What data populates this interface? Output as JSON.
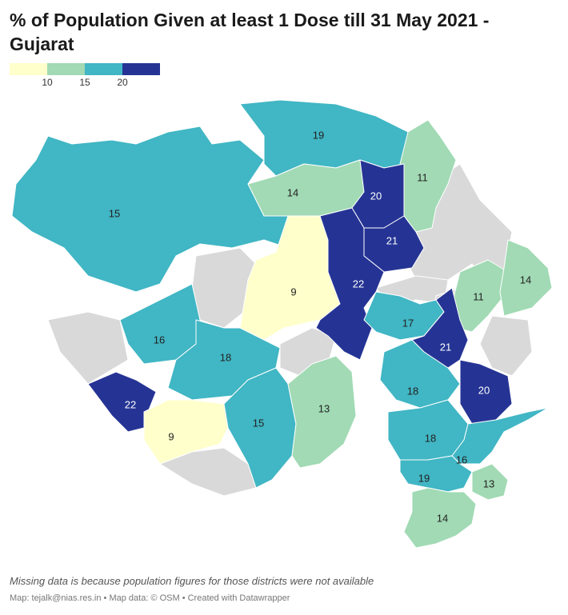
{
  "header": {
    "title": "% of Population Given at least 1 Dose till 31 May 2021 - Gujarat"
  },
  "legend": {
    "colors": [
      "#ffffcc",
      "#a1dab4",
      "#41b6c4",
      "#253494"
    ],
    "ticks": [
      "10",
      "15",
      "20"
    ]
  },
  "map_data": {
    "missing_color": "#d9d9d9",
    "regions": [
      {
        "name": "Kutch",
        "value": 15,
        "label": "15",
        "color": "#41b6c4"
      },
      {
        "name": "Banaskantha",
        "value": 19,
        "label": "19",
        "color": "#41b6c4"
      },
      {
        "name": "Patan",
        "value": 14,
        "label": "14",
        "color": "#a1dab4"
      },
      {
        "name": "Sabarkantha",
        "value": 11,
        "label": "11",
        "color": "#a1dab4"
      },
      {
        "name": "Mehsana",
        "value": 20,
        "label": "20",
        "color": "#253494"
      },
      {
        "name": "Gandhinagar",
        "value": 21,
        "label": "21",
        "color": "#253494"
      },
      {
        "name": "Surendranagar",
        "value": 9,
        "label": "9",
        "color": "#ffffcc"
      },
      {
        "name": "Ahmedabad",
        "value": 22,
        "label": "22",
        "color": "#253494"
      },
      {
        "name": "Panchmahal",
        "value": 11,
        "label": "11",
        "color": "#a1dab4"
      },
      {
        "name": "Dahod",
        "value": 14,
        "label": "14",
        "color": "#a1dab4"
      },
      {
        "name": "Anand",
        "value": 17,
        "label": "17",
        "color": "#41b6c4"
      },
      {
        "name": "Vadodara",
        "value": 21,
        "label": "21",
        "color": "#253494"
      },
      {
        "name": "Morbi",
        "value": 16,
        "label": "16",
        "color": "#41b6c4"
      },
      {
        "name": "Rajkot",
        "value": 18,
        "label": "18",
        "color": "#41b6c4"
      },
      {
        "name": "Porbandar",
        "value": 22,
        "label": "22",
        "color": "#253494"
      },
      {
        "name": "Junagadh",
        "value": 9,
        "label": "9",
        "color": "#ffffcc"
      },
      {
        "name": "Amreli",
        "value": 15,
        "label": "15",
        "color": "#41b6c4"
      },
      {
        "name": "Bhavnagar",
        "value": 13,
        "label": "13",
        "color": "#a1dab4"
      },
      {
        "name": "Bharuch",
        "value": 18,
        "label": "18",
        "color": "#41b6c4"
      },
      {
        "name": "Narmada",
        "value": 20,
        "label": "20",
        "color": "#253494"
      },
      {
        "name": "Surat",
        "value": 18,
        "label": "18",
        "color": "#41b6c4"
      },
      {
        "name": "Tapi",
        "value": 16,
        "label": "16",
        "color": "#41b6c4"
      },
      {
        "name": "Navsari",
        "value": 19,
        "label": "19",
        "color": "#41b6c4"
      },
      {
        "name": "Dang",
        "value": 13,
        "label": "13",
        "color": "#a1dab4"
      },
      {
        "name": "Valsad",
        "value": 14,
        "label": "14",
        "color": "#a1dab4"
      }
    ]
  },
  "footer": {
    "note": "Missing data is because population figures for those districts were not available",
    "credit": "Map: tejalk@nias.res.in • Map data: © OSM • Created with Datawrapper"
  }
}
